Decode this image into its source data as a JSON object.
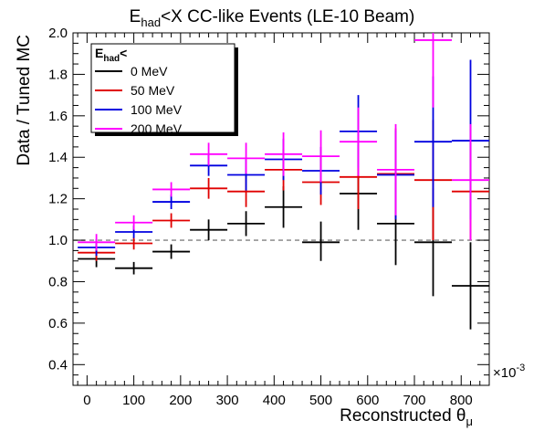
{
  "chart_data": {
    "type": "scatter",
    "title": {
      "main": "E",
      "sub": "had",
      "rest": "<X CC-like Events (LE-10 Beam)"
    },
    "xlabel": {
      "main": "Reconstructed θ",
      "sub": "μ"
    },
    "ylabel": "Data / Tuned MC",
    "x_multiplier": "×10",
    "x_multiplier_exp": "-3",
    "xlim": [
      -30,
      860
    ],
    "ylim": [
      0.3,
      2.0
    ],
    "xticks": [
      0,
      100,
      200,
      300,
      400,
      500,
      600,
      700,
      800
    ],
    "xtick_labels": [
      "0",
      "100",
      "200",
      "300",
      "400",
      "500",
      "600",
      "700",
      "800"
    ],
    "yticks": [
      0.4,
      0.6,
      0.8,
      1.0,
      1.2,
      1.4,
      1.6,
      1.8,
      2.0
    ],
    "ytick_labels": [
      "0.4",
      "0.6",
      "0.8",
      "1.0",
      "1.2",
      "1.4",
      "1.6",
      "1.8",
      "2.0"
    ],
    "reference_line": {
      "y": 1.0,
      "style": "dashed",
      "color": "#808080"
    },
    "legend": {
      "title_main": "E",
      "title_sub": "had",
      "title_rest": "<",
      "position": "top-left"
    },
    "series": [
      {
        "name": "0 MeV",
        "color": "#000000",
        "points": [
          {
            "x": 20,
            "xerr": 40,
            "y": 0.91,
            "ylo": 0.87,
            "yhi": 0.95
          },
          {
            "x": 100,
            "xerr": 40,
            "y": 0.865,
            "ylo": 0.835,
            "yhi": 0.895
          },
          {
            "x": 180,
            "xerr": 40,
            "y": 0.945,
            "ylo": 0.91,
            "yhi": 0.98
          },
          {
            "x": 260,
            "xerr": 40,
            "y": 1.05,
            "ylo": 1.0,
            "yhi": 1.1
          },
          {
            "x": 340,
            "xerr": 40,
            "y": 1.08,
            "ylo": 1.02,
            "yhi": 1.14
          },
          {
            "x": 420,
            "xerr": 40,
            "y": 1.16,
            "ylo": 1.06,
            "yhi": 1.26
          },
          {
            "x": 500,
            "xerr": 40,
            "y": 0.99,
            "ylo": 0.9,
            "yhi": 1.09
          },
          {
            "x": 580,
            "xerr": 40,
            "y": 1.225,
            "ylo": 1.05,
            "yhi": 1.4
          },
          {
            "x": 660,
            "xerr": 40,
            "y": 1.08,
            "ylo": 0.88,
            "yhi": 1.28
          },
          {
            "x": 740,
            "xerr": 40,
            "y": 0.99,
            "ylo": 0.73,
            "yhi": 1.25
          },
          {
            "x": 820,
            "xerr": 40,
            "y": 0.78,
            "ylo": 0.57,
            "yhi": 0.99
          }
        ]
      },
      {
        "name": "50 MeV",
        "color": "#e00000",
        "points": [
          {
            "x": 20,
            "xerr": 40,
            "y": 0.94,
            "ylo": 0.9,
            "yhi": 0.98
          },
          {
            "x": 100,
            "xerr": 40,
            "y": 0.985,
            "ylo": 0.955,
            "yhi": 1.015
          },
          {
            "x": 180,
            "xerr": 40,
            "y": 1.095,
            "ylo": 1.06,
            "yhi": 1.13
          },
          {
            "x": 260,
            "xerr": 40,
            "y": 1.25,
            "ylo": 1.2,
            "yhi": 1.3
          },
          {
            "x": 340,
            "xerr": 40,
            "y": 1.235,
            "ylo": 1.16,
            "yhi": 1.31
          },
          {
            "x": 420,
            "xerr": 40,
            "y": 1.34,
            "ylo": 1.24,
            "yhi": 1.44
          },
          {
            "x": 500,
            "xerr": 40,
            "y": 1.28,
            "ylo": 1.17,
            "yhi": 1.39
          },
          {
            "x": 580,
            "xerr": 40,
            "y": 1.305,
            "ylo": 1.15,
            "yhi": 1.46
          },
          {
            "x": 660,
            "xerr": 40,
            "y": 1.32,
            "ylo": 1.1,
            "yhi": 1.54
          },
          {
            "x": 740,
            "xerr": 40,
            "y": 1.29,
            "ylo": 1.0,
            "yhi": 1.58
          },
          {
            "x": 820,
            "xerr": 40,
            "y": 1.235,
            "ylo": 1.0,
            "yhi": 1.47
          }
        ]
      },
      {
        "name": "100 MeV",
        "color": "#0000e0",
        "points": [
          {
            "x": 20,
            "xerr": 40,
            "y": 0.965,
            "ylo": 0.925,
            "yhi": 1.005
          },
          {
            "x": 100,
            "xerr": 40,
            "y": 1.04,
            "ylo": 1.01,
            "yhi": 1.07
          },
          {
            "x": 180,
            "xerr": 40,
            "y": 1.185,
            "ylo": 1.15,
            "yhi": 1.22
          },
          {
            "x": 260,
            "xerr": 40,
            "y": 1.36,
            "ylo": 1.31,
            "yhi": 1.41
          },
          {
            "x": 340,
            "xerr": 40,
            "y": 1.315,
            "ylo": 1.24,
            "yhi": 1.39
          },
          {
            "x": 420,
            "xerr": 40,
            "y": 1.39,
            "ylo": 1.29,
            "yhi": 1.49
          },
          {
            "x": 500,
            "xerr": 40,
            "y": 1.335,
            "ylo": 1.22,
            "yhi": 1.45
          },
          {
            "x": 580,
            "xerr": 40,
            "y": 1.525,
            "ylo": 1.35,
            "yhi": 1.7
          },
          {
            "x": 660,
            "xerr": 40,
            "y": 1.315,
            "ylo": 1.1,
            "yhi": 1.53
          },
          {
            "x": 740,
            "xerr": 40,
            "y": 1.475,
            "ylo": 1.16,
            "yhi": 1.79
          },
          {
            "x": 820,
            "xerr": 40,
            "y": 1.48,
            "ylo": 1.1,
            "yhi": 1.87
          }
        ]
      },
      {
        "name": "200 MeV",
        "color": "#ff00ff",
        "points": [
          {
            "x": 20,
            "xerr": 40,
            "y": 0.99,
            "ylo": 0.95,
            "yhi": 1.03
          },
          {
            "x": 100,
            "xerr": 40,
            "y": 1.085,
            "ylo": 1.05,
            "yhi": 1.12
          },
          {
            "x": 180,
            "xerr": 40,
            "y": 1.245,
            "ylo": 1.21,
            "yhi": 1.28
          },
          {
            "x": 260,
            "xerr": 40,
            "y": 1.415,
            "ylo": 1.36,
            "yhi": 1.47
          },
          {
            "x": 340,
            "xerr": 40,
            "y": 1.395,
            "ylo": 1.32,
            "yhi": 1.47
          },
          {
            "x": 420,
            "xerr": 40,
            "y": 1.415,
            "ylo": 1.31,
            "yhi": 1.52
          },
          {
            "x": 500,
            "xerr": 40,
            "y": 1.405,
            "ylo": 1.28,
            "yhi": 1.53
          },
          {
            "x": 580,
            "xerr": 40,
            "y": 1.475,
            "ylo": 1.31,
            "yhi": 1.64
          },
          {
            "x": 660,
            "xerr": 40,
            "y": 1.34,
            "ylo": 1.12,
            "yhi": 1.56
          },
          {
            "x": 740,
            "xerr": 40,
            "y": 1.965,
            "ylo": 1.64,
            "yhi": 2.0
          },
          {
            "x": 820,
            "xerr": 40,
            "y": 1.29,
            "ylo": 1.0,
            "yhi": 1.56
          }
        ]
      }
    ]
  }
}
